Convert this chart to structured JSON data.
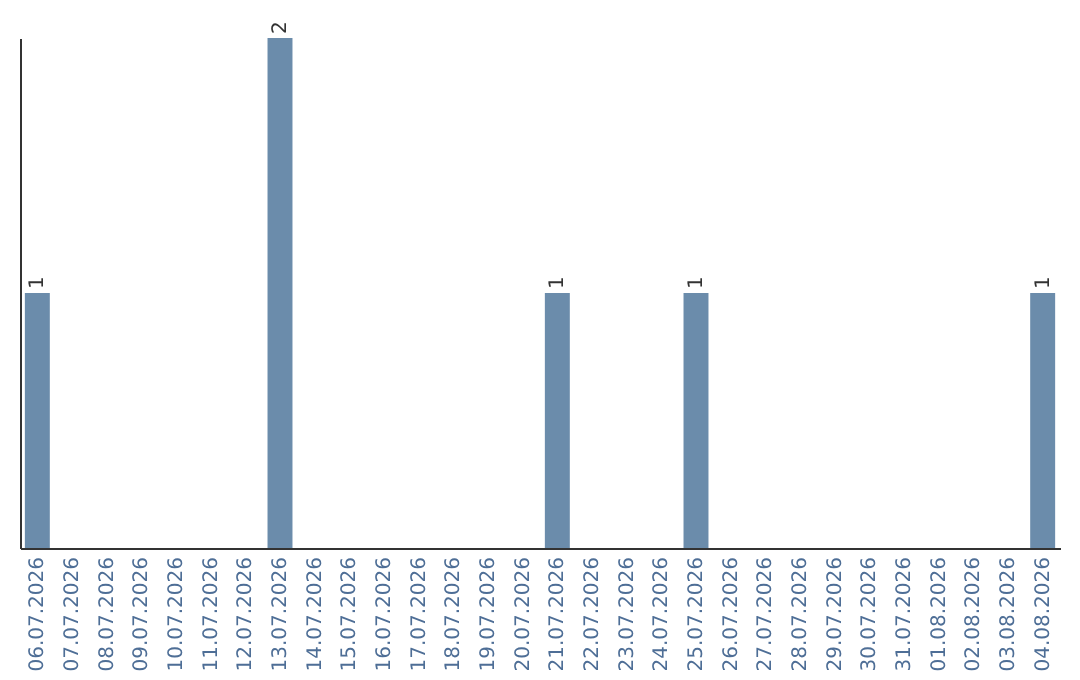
{
  "chart_data": {
    "type": "bar",
    "categories": [
      "06.07.2026",
      "07.07.2026",
      "08.07.2026",
      "09.07.2026",
      "10.07.2026",
      "11.07.2026",
      "12.07.2026",
      "13.07.2026",
      "14.07.2026",
      "15.07.2026",
      "16.07.2026",
      "17.07.2026",
      "18.07.2026",
      "19.07.2026",
      "20.07.2026",
      "21.07.2026",
      "22.07.2026",
      "23.07.2026",
      "24.07.2026",
      "25.07.2026",
      "26.07.2026",
      "27.07.2026",
      "28.07.2026",
      "29.07.2026",
      "30.07.2026",
      "31.07.2026",
      "01.08.2026",
      "02.08.2026",
      "03.08.2026",
      "04.08.2026"
    ],
    "values": [
      1,
      0,
      0,
      0,
      0,
      0,
      0,
      2,
      0,
      0,
      0,
      0,
      0,
      0,
      0,
      1,
      0,
      0,
      0,
      1,
      0,
      0,
      0,
      0,
      0,
      0,
      0,
      0,
      0,
      1
    ],
    "value_labels": [
      "1",
      null,
      null,
      null,
      null,
      null,
      null,
      "2",
      null,
      null,
      null,
      null,
      null,
      null,
      null,
      "1",
      null,
      null,
      null,
      "1",
      null,
      null,
      null,
      null,
      null,
      null,
      null,
      null,
      null,
      "1"
    ],
    "color": "#6b8cab"
  }
}
